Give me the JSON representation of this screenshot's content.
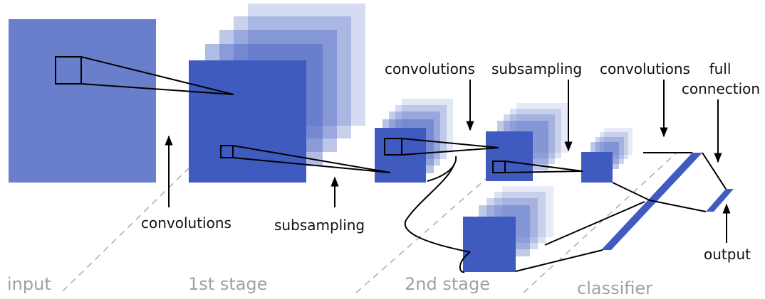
{
  "colors": {
    "map": "#3f5bbf",
    "input_fill": "#6a7fcc",
    "line": "#000000",
    "dashed": "#b0b0b0",
    "stage_text": "#a0a0a0"
  },
  "stages": {
    "input": "input",
    "stage1": "1st stage",
    "stage2": "2nd stage",
    "classifier": "classifier"
  },
  "labels": {
    "convolutions_1": "convolutions",
    "subsampling_1": "subsampling",
    "convolutions_2": "convolutions",
    "subsampling_2": "subsampling",
    "convolutions_3": "convolutions",
    "full_connection_line1": "full",
    "full_connection_line2": "connection",
    "output": "output"
  }
}
